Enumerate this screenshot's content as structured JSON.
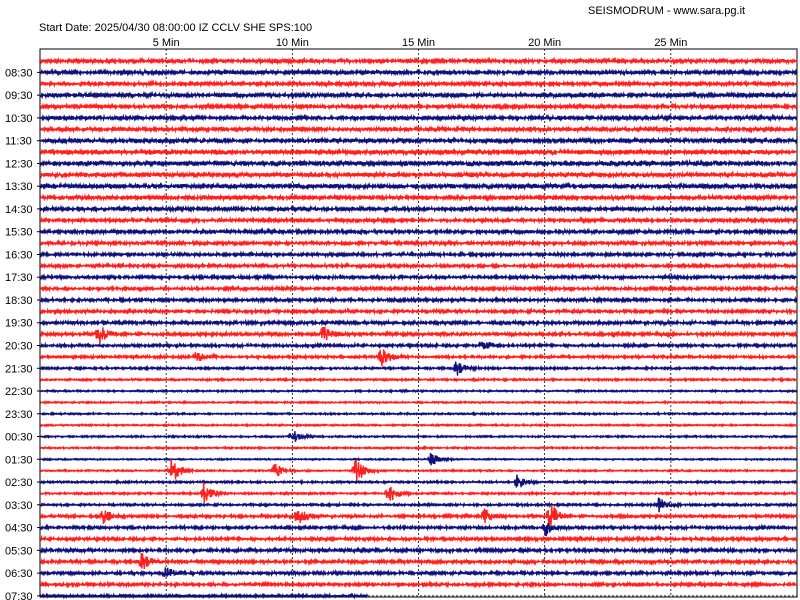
{
  "header": {
    "title": "SEISMODRUM - www.sara.pg.it",
    "start_info": "Start Date: 2025/04/30 08:00:00 IZ CCLV SHE SPS:100"
  },
  "chart_data": {
    "type": "line",
    "title": "SEISMODRUM - www.sara.pg.it",
    "subtitle": "Start Date: 2025/04/30 08:00:00 IZ CCLV SHE SPS:100",
    "x_ticks": [
      5,
      10,
      15,
      20,
      25
    ],
    "x_tick_labels": [
      "5 Min",
      "10 Min",
      "15 Min",
      "20 Min",
      "25 Min"
    ],
    "x_range": [
      0,
      30
    ],
    "time_labels": [
      "08:30",
      "09:30",
      "10:30",
      "11:30",
      "12:30",
      "13:30",
      "14:30",
      "15:30",
      "16:30",
      "17:30",
      "18:30",
      "19:30",
      "20:30",
      "21:30",
      "22:30",
      "23:30",
      "00:30",
      "01:30",
      "02:30",
      "03:30",
      "04:30",
      "05:30",
      "06:30",
      "07:30"
    ],
    "trace_count": 48,
    "trace_colors": [
      "#ff2020",
      "#10107a"
    ],
    "trace_amplitude": [
      0.7,
      0.7,
      0.7,
      0.75,
      0.7,
      0.7,
      0.7,
      0.8,
      0.85,
      0.9,
      0.85,
      0.85,
      0.75,
      0.7,
      0.6,
      0.65,
      0.6,
      0.55,
      0.55,
      0.55,
      0.55,
      0.55,
      0.55,
      0.6,
      0.6,
      0.5,
      0.45,
      0.4,
      0.35,
      0.3,
      0.3,
      0.3,
      0.3,
      0.3,
      0.3,
      0.25,
      0.3,
      0.35,
      0.35,
      0.4,
      0.5,
      0.5,
      0.55,
      0.6,
      0.6,
      0.55,
      0.55,
      0.45
    ],
    "events": [
      {
        "trace": 24,
        "minute": 2.3,
        "amplitude": 1.2
      },
      {
        "trace": 24,
        "minute": 11.2,
        "amplitude": 1.0
      },
      {
        "trace": 25,
        "minute": 17.5,
        "amplitude": 0.9
      },
      {
        "trace": 26,
        "minute": 13.5,
        "amplitude": 1.1
      },
      {
        "trace": 26,
        "minute": 6.2,
        "amplitude": 0.6
      },
      {
        "trace": 27,
        "minute": 16.5,
        "amplitude": 0.8
      },
      {
        "trace": 33,
        "minute": 10.0,
        "amplitude": 0.7
      },
      {
        "trace": 35,
        "minute": 15.5,
        "amplitude": 0.8
      },
      {
        "trace": 36,
        "minute": 5.2,
        "amplitude": 1.6
      },
      {
        "trace": 36,
        "minute": 12.5,
        "amplitude": 1.5
      },
      {
        "trace": 36,
        "minute": 9.3,
        "amplitude": 0.9
      },
      {
        "trace": 37,
        "minute": 18.9,
        "amplitude": 0.8
      },
      {
        "trace": 38,
        "minute": 6.5,
        "amplitude": 1.4
      },
      {
        "trace": 38,
        "minute": 13.8,
        "amplitude": 1.2
      },
      {
        "trace": 39,
        "minute": 24.5,
        "amplitude": 0.8
      },
      {
        "trace": 40,
        "minute": 2.5,
        "amplitude": 0.8
      },
      {
        "trace": 40,
        "minute": 10.2,
        "amplitude": 1.2
      },
      {
        "trace": 40,
        "minute": 20.2,
        "amplitude": 1.7
      },
      {
        "trace": 40,
        "minute": 17.6,
        "amplitude": 0.9
      },
      {
        "trace": 41,
        "minute": 20.0,
        "amplitude": 1.0
      },
      {
        "trace": 44,
        "minute": 4.0,
        "amplitude": 1.0
      },
      {
        "trace": 45,
        "minute": 5.0,
        "amplitude": 0.6
      }
    ],
    "last_trace_end_minute": 13.0,
    "grid": true
  }
}
